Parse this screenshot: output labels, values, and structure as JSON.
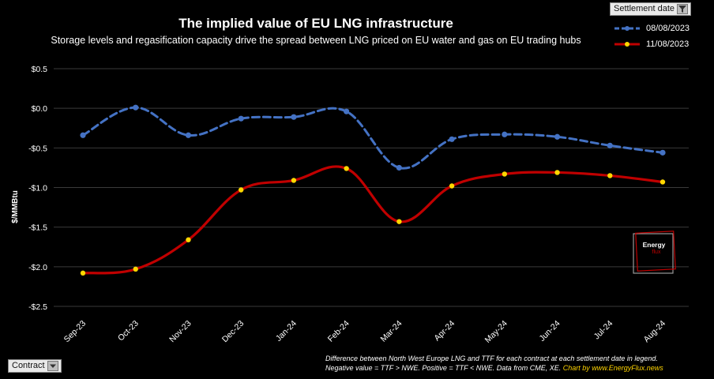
{
  "header": {
    "title": "The implied value of EU LNG infrastructure",
    "subtitle": "Storage levels and regasification capacity drive the spread between LNG priced on EU water and gas on EU trading hubs"
  },
  "filters": {
    "settlement_label": "Settlement date",
    "contract_label": "Contract"
  },
  "footnote": {
    "line1": "Difference between North West Europe LNG and TTF for each contract at each settlement date in legend.",
    "line2_prefix": "Negative value = TTF > NWE. Positive = TTF < NWE. Data from CME, XE. ",
    "credit": "Chart by www.EnergyFlux.news"
  },
  "logo": {
    "line1": "Energy",
    "line2": "flux"
  },
  "colors": {
    "series_1": "#4472c4",
    "series_2": "#c00000",
    "marker_2": "#ffd700",
    "grid": "#3a3a3a",
    "logo_accent": "#c00000"
  },
  "chart_data": {
    "type": "line",
    "title": "The implied value of EU LNG infrastructure",
    "subtitle": "Storage levels and regasification capacity drive the spread between LNG priced on EU water and gas on EU trading hubs",
    "xlabel": "",
    "ylabel": "$/MMBtu",
    "categories": [
      "Sep-23",
      "Oct-23",
      "Nov-23",
      "Dec-23",
      "Jan-24",
      "Feb-24",
      "Mar-24",
      "Apr-24",
      "May-24",
      "Jun-24",
      "Jul-24",
      "Aug-24"
    ],
    "ylim": [
      -2.5,
      0.5
    ],
    "yticks": [
      0.5,
      0.0,
      -0.5,
      -1.0,
      -1.5,
      -2.0,
      -2.5
    ],
    "ytick_labels": [
      "$0.5",
      "$0.0",
      "-$0.5",
      "-$1.0",
      "-$1.5",
      "-$2.0",
      "-$2.5"
    ],
    "grid": true,
    "legend_position": "top-right",
    "series": [
      {
        "name": "08/08/2023",
        "style": "dashed",
        "values": [
          -0.34,
          0.01,
          -0.34,
          -0.13,
          -0.11,
          -0.04,
          -0.75,
          -0.39,
          -0.33,
          -0.36,
          -0.47,
          -0.56
        ]
      },
      {
        "name": "11/08/2023",
        "style": "solid",
        "values": [
          -2.08,
          -2.03,
          -1.66,
          -1.03,
          -0.91,
          -0.76,
          -1.43,
          -0.98,
          -0.83,
          -0.81,
          -0.85,
          -0.93
        ]
      }
    ]
  }
}
